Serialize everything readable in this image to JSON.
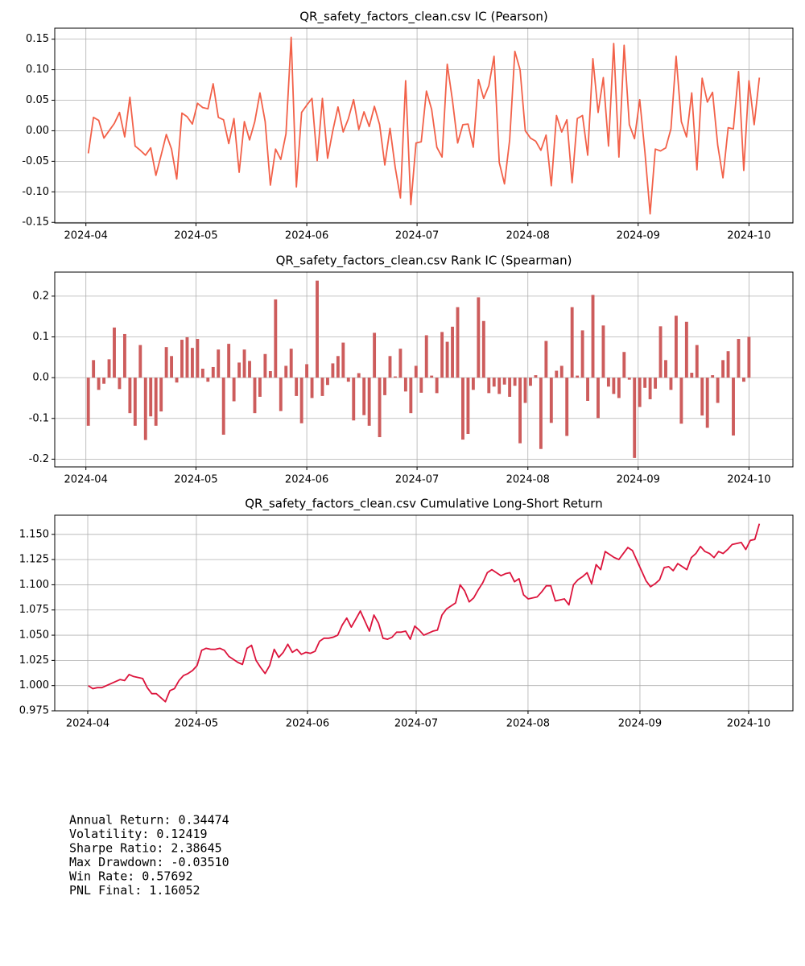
{
  "chart_data": [
    {
      "type": "line",
      "title": "QR_safety_factors_clean.csv IC (Pearson)",
      "color": "#f26149",
      "grid": true,
      "values": [
        -0.037,
        0.022,
        0.017,
        -0.012,
        0.0,
        0.012,
        0.03,
        -0.01,
        0.055,
        -0.025,
        -0.032,
        -0.04,
        -0.028,
        -0.073,
        -0.04,
        -0.006,
        -0.03,
        -0.079,
        0.029,
        0.023,
        0.011,
        0.045,
        0.038,
        0.036,
        0.077,
        0.022,
        0.018,
        -0.021,
        0.02,
        -0.068,
        0.015,
        -0.015,
        0.015,
        0.062,
        0.015,
        -0.089,
        -0.03,
        -0.047,
        -0.005,
        0.153,
        -0.092,
        0.03,
        0.042,
        0.053,
        -0.049,
        0.053,
        -0.045,
        0.0,
        0.039,
        -0.002,
        0.02,
        0.051,
        0.002,
        0.031,
        0.007,
        0.04,
        0.01,
        -0.056,
        0.004,
        -0.06,
        -0.11,
        0.082,
        -0.121,
        -0.02,
        -0.018,
        0.065,
        0.035,
        -0.027,
        -0.043,
        0.109,
        0.05,
        -0.02,
        0.01,
        0.011,
        -0.027,
        0.084,
        0.053,
        0.074,
        0.122,
        -0.052,
        -0.087,
        -0.015,
        0.13,
        0.1,
        0.0,
        -0.012,
        -0.017,
        -0.032,
        -0.007,
        -0.09,
        0.025,
        -0.002,
        0.018,
        -0.085,
        0.02,
        0.025,
        -0.04,
        0.118,
        0.03,
        0.087,
        -0.025,
        0.143,
        -0.043,
        0.14,
        0.01,
        -0.013,
        0.051,
        -0.035,
        -0.136,
        -0.03,
        -0.033,
        -0.028,
        0.003,
        0.122,
        0.015,
        -0.01,
        0.062,
        -0.064,
        0.086,
        0.047,
        0.063,
        -0.024,
        -0.077,
        0.005,
        0.003,
        0.097,
        -0.065,
        0.082,
        0.01,
        0.087
      ],
      "xlim": [
        -6.45,
        135.45
      ],
      "xticks": [
        {
          "value": -0.46,
          "label": "2024-04"
        },
        {
          "value": 20.7,
          "label": "2024-05"
        },
        {
          "value": 42.0,
          "label": "2024-06"
        },
        {
          "value": 63.2,
          "label": "2024-07"
        },
        {
          "value": 84.5,
          "label": "2024-08"
        },
        {
          "value": 105.7,
          "label": "2024-09"
        },
        {
          "value": 127.0,
          "label": "2024-10"
        }
      ],
      "ylim": [
        -0.151,
        0.168
      ],
      "yticks": [
        -0.15,
        {
          "value": -0.1,
          "label": "-0.10"
        },
        -0.05,
        {
          "value": 0,
          "label": "0.00"
        },
        0.05,
        {
          "value": 0.1,
          "label": "0.10"
        },
        0.15
      ]
    },
    {
      "type": "bar",
      "title": "QR_safety_factors_clean.csv Rank IC (Spearman)",
      "color": "#cd5c5c",
      "grid": true,
      "values": [
        -0.118,
        0.043,
        -0.03,
        -0.015,
        0.045,
        0.123,
        -0.028,
        0.107,
        -0.087,
        -0.118,
        0.08,
        -0.153,
        -0.095,
        -0.118,
        -0.083,
        0.075,
        0.053,
        -0.012,
        0.093,
        0.099,
        0.073,
        0.095,
        0.022,
        -0.01,
        0.026,
        0.069,
        -0.14,
        0.083,
        -0.058,
        0.037,
        0.069,
        0.041,
        -0.087,
        -0.047,
        0.058,
        0.016,
        0.192,
        -0.082,
        0.029,
        0.071,
        -0.045,
        -0.112,
        0.033,
        -0.05,
        0.238,
        -0.045,
        -0.018,
        0.035,
        0.053,
        0.086,
        -0.01,
        -0.105,
        0.011,
        -0.092,
        -0.118,
        0.11,
        -0.146,
        -0.043,
        0.053,
        0.003,
        0.071,
        -0.034,
        -0.087,
        0.029,
        -0.037,
        0.104,
        0.005,
        -0.038,
        0.112,
        0.088,
        0.125,
        0.173,
        -0.152,
        -0.138,
        -0.03,
        0.197,
        0.139,
        -0.038,
        -0.022,
        -0.04,
        -0.017,
        -0.047,
        -0.02,
        -0.161,
        -0.062,
        -0.02,
        0.006,
        -0.175,
        0.09,
        -0.111,
        0.017,
        0.029,
        -0.143,
        0.173,
        0.005,
        0.116,
        -0.057,
        0.203,
        -0.099,
        0.128,
        -0.022,
        -0.04,
        -0.05,
        0.063,
        -0.005,
        -0.197,
        -0.072,
        -0.025,
        -0.053,
        -0.027,
        0.126,
        0.043,
        -0.03,
        0.152,
        -0.113,
        0.137,
        0.012,
        0.08,
        -0.093,
        -0.123,
        0.006,
        -0.062,
        0.043,
        0.065,
        -0.142,
        0.095,
        -0.01,
        0.1
      ],
      "xlim": [
        -6.45,
        135.45
      ],
      "xticks": [
        {
          "value": -0.46,
          "label": "2024-04"
        },
        {
          "value": 20.7,
          "label": "2024-05"
        },
        {
          "value": 42.0,
          "label": "2024-06"
        },
        {
          "value": 63.2,
          "label": "2024-07"
        },
        {
          "value": 84.5,
          "label": "2024-08"
        },
        {
          "value": 105.7,
          "label": "2024-09"
        },
        {
          "value": 127.0,
          "label": "2024-10"
        }
      ],
      "ylim": [
        -0.219,
        0.259
      ],
      "yticks": [
        -0.2,
        -0.1,
        {
          "value": 0,
          "label": "0.0"
        },
        0.1,
        0.2
      ]
    },
    {
      "type": "line",
      "title": "QR_safety_factors_clean.csv Cumulative Long-Short Return",
      "color": "#dc143c",
      "grid": true,
      "values": [
        1.0,
        0.997,
        0.998,
        0.998,
        1.0,
        1.002,
        1.004,
        1.006,
        1.005,
        1.011,
        1.009,
        1.008,
        1.007,
        0.998,
        0.992,
        0.992,
        0.988,
        0.984,
        0.995,
        0.997,
        1.005,
        1.01,
        1.012,
        1.015,
        1.02,
        1.035,
        1.037,
        1.036,
        1.036,
        1.037,
        1.035,
        1.029,
        1.026,
        1.023,
        1.021,
        1.037,
        1.04,
        1.025,
        1.018,
        1.012,
        1.02,
        1.036,
        1.028,
        1.033,
        1.041,
        1.033,
        1.036,
        1.031,
        1.033,
        1.032,
        1.034,
        1.044,
        1.047,
        1.047,
        1.048,
        1.05,
        1.06,
        1.067,
        1.058,
        1.066,
        1.074,
        1.064,
        1.054,
        1.07,
        1.062,
        1.047,
        1.046,
        1.048,
        1.053,
        1.053,
        1.054,
        1.046,
        1.059,
        1.055,
        1.05,
        1.052,
        1.054,
        1.055,
        1.07,
        1.076,
        1.079,
        1.082,
        1.1,
        1.094,
        1.083,
        1.087,
        1.095,
        1.102,
        1.112,
        1.115,
        1.112,
        1.109,
        1.111,
        1.112,
        1.103,
        1.106,
        1.09,
        1.086,
        1.087,
        1.088,
        1.093,
        1.099,
        1.099,
        1.084,
        1.085,
        1.086,
        1.08,
        1.1,
        1.105,
        1.108,
        1.112,
        1.101,
        1.12,
        1.115,
        1.133,
        1.13,
        1.127,
        1.125,
        1.131,
        1.137,
        1.134,
        1.124,
        1.114,
        1.104,
        1.098,
        1.101,
        1.105,
        1.117,
        1.118,
        1.114,
        1.121,
        1.118,
        1.115,
        1.127,
        1.131,
        1.138,
        1.133,
        1.131,
        1.127,
        1.133,
        1.131,
        1.135,
        1.14,
        1.141,
        1.142,
        1.135,
        1.144,
        1.145,
        1.1605
      ],
      "xlim": [
        -7.4,
        155.4
      ],
      "xticks": [
        {
          "value": -0.12,
          "label": "2024-04"
        },
        {
          "value": 23.84,
          "label": "2024-05"
        },
        {
          "value": 48.34,
          "label": "2024-06"
        },
        {
          "value": 72.31,
          "label": "2024-07"
        },
        {
          "value": 96.98,
          "label": "2024-08"
        },
        {
          "value": 121.66,
          "label": "2024-09"
        },
        {
          "value": 145.63,
          "label": "2024-10"
        }
      ],
      "ylim": [
        0.975,
        1.169
      ],
      "yticks": [
        0.975,
        {
          "value": 1.0,
          "label": "1.000"
        },
        1.025,
        {
          "value": 1.05,
          "label": "1.050"
        },
        1.075,
        {
          "value": 1.1,
          "label": "1.100"
        },
        1.125,
        {
          "value": 1.15,
          "label": "1.150"
        }
      ]
    }
  ],
  "summary": {
    "lines": [
      "Annual Return: 0.34474",
      "Volatility: 0.12419",
      "Sharpe Ratio: 2.38645",
      "Max Drawdown: -0.03510",
      "Win Rate: 0.57692",
      "PNL Final: 1.16052"
    ]
  }
}
